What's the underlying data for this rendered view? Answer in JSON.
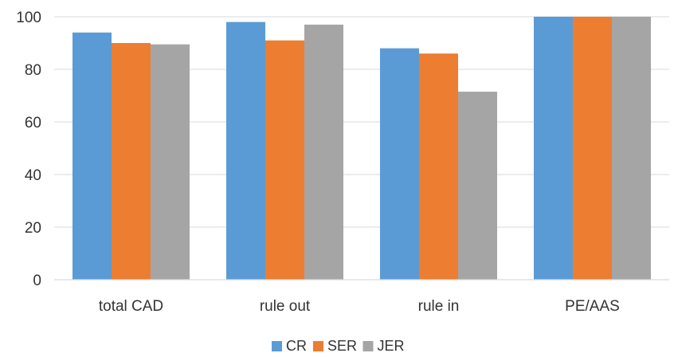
{
  "chart_data": {
    "type": "bar",
    "categories": [
      "total CAD",
      "rule out",
      "rule in",
      "PE/AAS"
    ],
    "series": [
      {
        "name": "CR",
        "color": "#5B9BD5",
        "values": [
          94,
          98,
          88,
          100
        ]
      },
      {
        "name": "SER",
        "color": "#ED7D31",
        "values": [
          90,
          91,
          86,
          100
        ]
      },
      {
        "name": "JER",
        "color": "#A5A5A5",
        "values": [
          89.5,
          97,
          71.5,
          100
        ]
      }
    ],
    "ylim": [
      0,
      100
    ],
    "yticks": [
      0,
      20,
      40,
      60,
      80,
      100
    ],
    "grid": true,
    "legend_position": "bottom"
  }
}
